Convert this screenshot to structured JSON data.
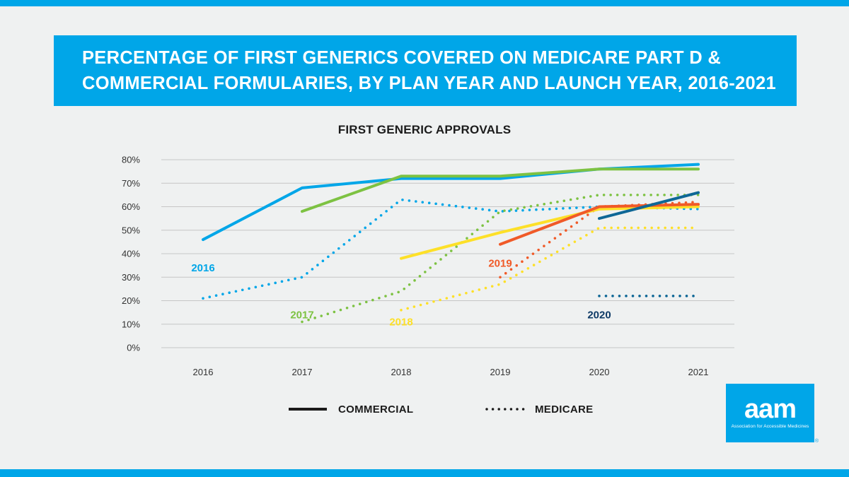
{
  "title": {
    "line1": "PERCENTAGE OF FIRST GENERICS COVERED ON MEDICARE PART D &",
    "line2": "COMMERCIAL FORMULARIES, BY PLAN YEAR AND LAUNCH YEAR, 2016-2021"
  },
  "legend": {
    "commercial": "COMMERCIAL",
    "medicare": "MEDICARE"
  },
  "logo": {
    "word": "aam",
    "tagline": "Association for Accessible Medicines",
    "reg": "®"
  },
  "chart_data": {
    "type": "line",
    "title": "FIRST GENERIC APPROVALS",
    "xlabel": "",
    "ylabel": "",
    "x": [
      "2016",
      "2017",
      "2018",
      "2019",
      "2020",
      "2021"
    ],
    "yticks": [
      "0%",
      "10%",
      "20%",
      "30%",
      "40%",
      "50%",
      "60%",
      "70%",
      "80%"
    ],
    "ylim": [
      0,
      80
    ],
    "grid": true,
    "series": [
      {
        "name": "2016 Commercial",
        "launch": "2016",
        "style": "solid",
        "color": "#00a6e8",
        "values": [
          46,
          68,
          72,
          72,
          76,
          78
        ]
      },
      {
        "name": "2016 Medicare",
        "launch": "2016",
        "style": "dotted",
        "color": "#00a6e8",
        "values": [
          21,
          30,
          63,
          58,
          60,
          59
        ]
      },
      {
        "name": "2017 Commercial",
        "launch": "2017",
        "style": "solid",
        "color": "#7dc242",
        "values": [
          null,
          58,
          73,
          73,
          76,
          76
        ]
      },
      {
        "name": "2017 Medicare",
        "launch": "2017",
        "style": "dotted",
        "color": "#7dc242",
        "values": [
          null,
          11,
          24,
          58,
          65,
          65
        ]
      },
      {
        "name": "2018 Commercial",
        "launch": "2018",
        "style": "solid",
        "color": "#fde028",
        "values": [
          null,
          null,
          38,
          49,
          59,
          60
        ]
      },
      {
        "name": "2018 Medicare",
        "launch": "2018",
        "style": "dotted",
        "color": "#fde028",
        "values": [
          null,
          null,
          16,
          27,
          51,
          51
        ]
      },
      {
        "name": "2019 Commercial",
        "launch": "2019",
        "style": "solid",
        "color": "#f05a28",
        "values": [
          null,
          null,
          null,
          44,
          60,
          61
        ]
      },
      {
        "name": "2019 Medicare",
        "launch": "2019",
        "style": "dotted",
        "color": "#f05a28",
        "values": [
          null,
          null,
          null,
          30,
          60,
          62
        ]
      },
      {
        "name": "2020 Commercial",
        "launch": "2020",
        "style": "solid",
        "color": "#0e6796",
        "values": [
          null,
          null,
          null,
          null,
          55,
          66
        ]
      },
      {
        "name": "2020 Medicare",
        "launch": "2020",
        "style": "dotted",
        "color": "#0e6796",
        "values": [
          null,
          null,
          null,
          null,
          22,
          22
        ]
      }
    ],
    "annotations": [
      {
        "text": "2016",
        "color": "#00a6e8",
        "at_x": "2016",
        "at_y": 34
      },
      {
        "text": "2017",
        "color": "#7dc242",
        "at_x": "2017",
        "at_y": 14
      },
      {
        "text": "2018",
        "color": "#fde028",
        "at_x": "2018",
        "at_y": 11
      },
      {
        "text": "2019",
        "color": "#f05a28",
        "at_x": "2019",
        "at_y": 36
      },
      {
        "text": "2020",
        "color": "#0e3a66",
        "at_x": "2020",
        "at_y": 14
      }
    ]
  }
}
